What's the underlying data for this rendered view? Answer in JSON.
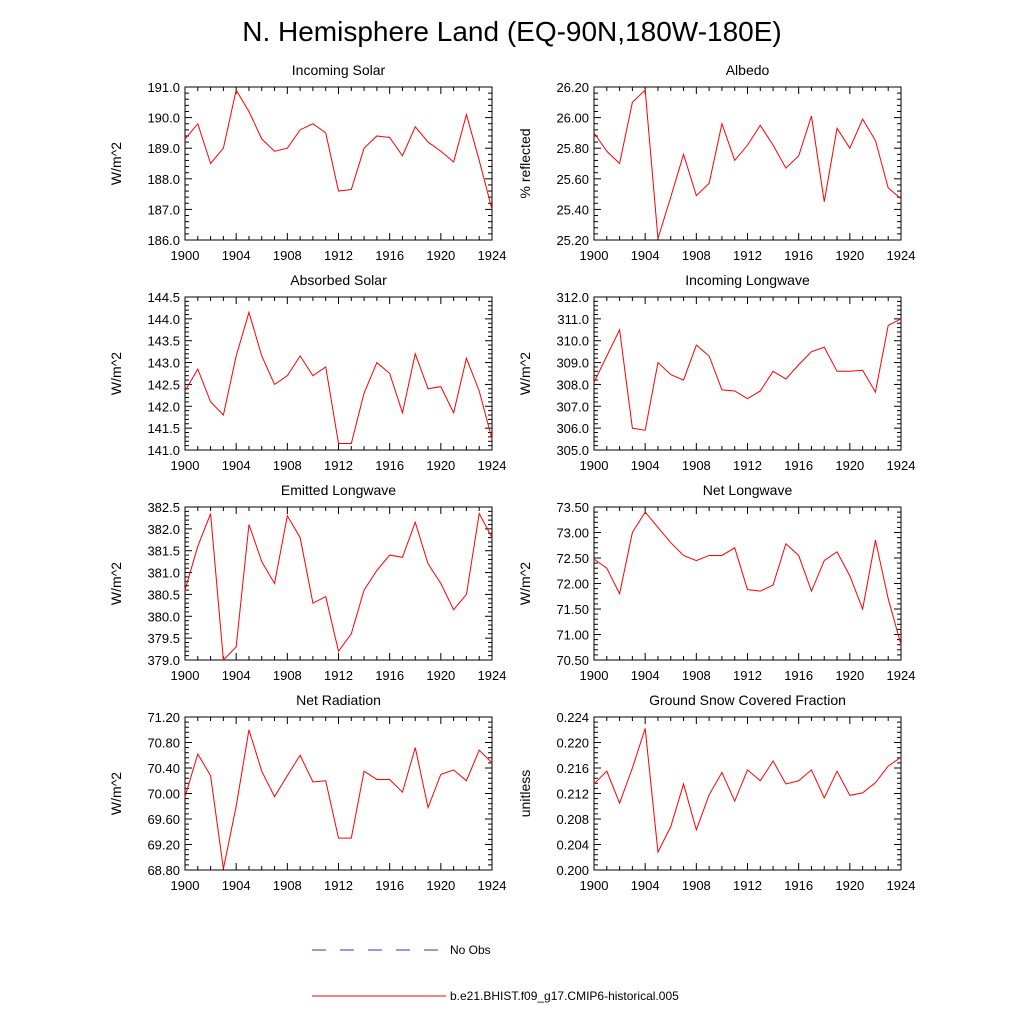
{
  "figure_title": "N. Hemisphere Land (EQ-90N,180W-180E)",
  "colors": {
    "model_line": "#ff0000",
    "obs_line": "#3333cc"
  },
  "legend": {
    "obs_label": "No Obs",
    "model_label": "b.e21.BHIST.f09_g17.CMIP6-historical.005"
  },
  "chart_data": [
    {
      "type": "line",
      "title": "Incoming Solar",
      "ylabel": "W/m^2",
      "xlabel": "",
      "xlim": [
        1900,
        1924
      ],
      "ylim": [
        186.0,
        191.0
      ],
      "xticks": [
        1900,
        1904,
        1908,
        1912,
        1916,
        1920,
        1924
      ],
      "yticks": [
        "186.0",
        "187.0",
        "188.0",
        "189.0",
        "190.0",
        "191.0"
      ],
      "series": [
        {
          "name": "b.e21.BHIST.f09_g17.CMIP6-historical.005",
          "x": [
            1900,
            1901,
            1902,
            1903,
            1904,
            1905,
            1906,
            1907,
            1908,
            1909,
            1910,
            1911,
            1912,
            1913,
            1914,
            1915,
            1916,
            1917,
            1918,
            1919,
            1920,
            1921,
            1922,
            1923,
            1924
          ],
          "values": [
            189.3,
            189.8,
            188.5,
            189.0,
            190.9,
            190.2,
            189.3,
            188.9,
            189.0,
            189.6,
            189.8,
            189.5,
            187.6,
            187.65,
            189.0,
            189.4,
            189.35,
            188.75,
            189.7,
            189.2,
            188.9,
            188.55,
            190.1,
            188.6,
            187.0
          ]
        }
      ]
    },
    {
      "type": "line",
      "title": "Albedo",
      "ylabel": "% reflected",
      "xlabel": "",
      "xlim": [
        1900,
        1924
      ],
      "ylim": [
        25.2,
        26.2
      ],
      "xticks": [
        1900,
        1904,
        1908,
        1912,
        1916,
        1920,
        1924
      ],
      "yticks": [
        "25.20",
        "25.40",
        "25.60",
        "25.80",
        "26.00",
        "26.20"
      ],
      "series": [
        {
          "name": "b.e21.BHIST.f09_g17.CMIP6-historical.005",
          "x": [
            1900,
            1901,
            1902,
            1903,
            1904,
            1905,
            1906,
            1907,
            1908,
            1909,
            1910,
            1911,
            1912,
            1913,
            1914,
            1915,
            1916,
            1917,
            1918,
            1919,
            1920,
            1921,
            1922,
            1923,
            1924
          ],
          "values": [
            25.9,
            25.78,
            25.7,
            26.1,
            26.18,
            25.21,
            25.48,
            25.76,
            25.49,
            25.57,
            25.96,
            25.72,
            25.82,
            25.95,
            25.82,
            25.67,
            25.75,
            26.01,
            25.45,
            25.93,
            25.8,
            25.99,
            25.85,
            25.54,
            25.47
          ]
        }
      ]
    },
    {
      "type": "line",
      "title": "Absorbed Solar",
      "ylabel": "W/m^2",
      "xlabel": "",
      "xlim": [
        1900,
        1924
      ],
      "ylim": [
        141.0,
        144.5
      ],
      "xticks": [
        1900,
        1904,
        1908,
        1912,
        1916,
        1920,
        1924
      ],
      "yticks": [
        "141.0",
        "141.5",
        "142.0",
        "142.5",
        "143.0",
        "143.5",
        "144.0",
        "144.5"
      ],
      "series": [
        {
          "name": "b.e21.BHIST.f09_g17.CMIP6-historical.005",
          "x": [
            1900,
            1901,
            1902,
            1903,
            1904,
            1905,
            1906,
            1907,
            1908,
            1909,
            1910,
            1911,
            1912,
            1913,
            1914,
            1915,
            1916,
            1917,
            1918,
            1919,
            1920,
            1921,
            1922,
            1923,
            1924
          ],
          "values": [
            142.35,
            142.85,
            142.1,
            141.8,
            143.15,
            144.15,
            143.15,
            142.5,
            142.7,
            143.15,
            142.7,
            142.9,
            141.15,
            141.15,
            142.3,
            143.0,
            142.75,
            141.85,
            143.2,
            142.4,
            142.45,
            141.85,
            143.1,
            142.35,
            141.25
          ]
        }
      ]
    },
    {
      "type": "line",
      "title": "Incoming Longwave",
      "ylabel": "W/m^2",
      "xlabel": "",
      "xlim": [
        1900,
        1924
      ],
      "ylim": [
        305.0,
        312.0
      ],
      "xticks": [
        1900,
        1904,
        1908,
        1912,
        1916,
        1920,
        1924
      ],
      "yticks": [
        "305.0",
        "306.0",
        "307.0",
        "308.0",
        "309.0",
        "310.0",
        "311.0",
        "312.0"
      ],
      "series": [
        {
          "name": "b.e21.BHIST.f09_g17.CMIP6-historical.005",
          "x": [
            1900,
            1901,
            1902,
            1903,
            1904,
            1905,
            1906,
            1907,
            1908,
            1909,
            1910,
            1911,
            1912,
            1913,
            1914,
            1915,
            1916,
            1917,
            1918,
            1919,
            1920,
            1921,
            1922,
            1923,
            1924
          ],
          "values": [
            308.1,
            309.3,
            310.5,
            306.0,
            305.9,
            309.0,
            308.45,
            308.2,
            309.8,
            309.3,
            307.75,
            307.7,
            307.35,
            307.7,
            308.6,
            308.25,
            308.9,
            309.5,
            309.7,
            308.6,
            308.6,
            308.65,
            307.65,
            310.7,
            311.0
          ]
        }
      ]
    },
    {
      "type": "line",
      "title": "Emitted Longwave",
      "ylabel": "W/m^2",
      "xlabel": "",
      "xlim": [
        1900,
        1924
      ],
      "ylim": [
        379.0,
        382.5
      ],
      "xticks": [
        1900,
        1904,
        1908,
        1912,
        1916,
        1920,
        1924
      ],
      "yticks": [
        "379.0",
        "379.5",
        "380.0",
        "380.5",
        "381.0",
        "381.5",
        "382.0",
        "382.5"
      ],
      "series": [
        {
          "name": "b.e21.BHIST.f09_g17.CMIP6-historical.005",
          "x": [
            1900,
            1901,
            1902,
            1903,
            1904,
            1905,
            1906,
            1907,
            1908,
            1909,
            1910,
            1911,
            1912,
            1913,
            1914,
            1915,
            1916,
            1917,
            1918,
            1919,
            1920,
            1921,
            1922,
            1923,
            1924
          ],
          "values": [
            380.6,
            381.6,
            382.35,
            379.0,
            379.3,
            382.1,
            381.25,
            380.75,
            382.3,
            381.8,
            380.3,
            380.45,
            379.2,
            379.6,
            380.6,
            381.05,
            381.4,
            381.35,
            382.15,
            381.2,
            380.75,
            380.15,
            380.5,
            382.35,
            381.8
          ]
        }
      ]
    },
    {
      "type": "line",
      "title": "Net Longwave",
      "ylabel": "W/m^2",
      "xlabel": "",
      "xlim": [
        1900,
        1924
      ],
      "ylim": [
        70.5,
        73.5
      ],
      "xticks": [
        1900,
        1904,
        1908,
        1912,
        1916,
        1920,
        1924
      ],
      "yticks": [
        "70.50",
        "71.00",
        "71.50",
        "72.00",
        "72.50",
        "73.00",
        "73.50"
      ],
      "series": [
        {
          "name": "b.e21.BHIST.f09_g17.CMIP6-historical.005",
          "x": [
            1900,
            1901,
            1902,
            1903,
            1904,
            1905,
            1906,
            1907,
            1908,
            1909,
            1910,
            1911,
            1912,
            1913,
            1914,
            1915,
            1916,
            1917,
            1918,
            1919,
            1920,
            1921,
            1922,
            1923,
            1924
          ],
          "values": [
            72.48,
            72.3,
            71.8,
            73.0,
            73.4,
            73.1,
            72.8,
            72.55,
            72.45,
            72.55,
            72.55,
            72.7,
            71.88,
            71.85,
            71.97,
            72.78,
            72.55,
            71.85,
            72.45,
            72.62,
            72.15,
            71.5,
            72.85,
            71.7,
            70.8
          ]
        }
      ]
    },
    {
      "type": "line",
      "title": "Net Radiation",
      "ylabel": "W/m^2",
      "xlabel": "",
      "xlim": [
        1900,
        1924
      ],
      "ylim": [
        68.8,
        71.2
      ],
      "xticks": [
        1900,
        1904,
        1908,
        1912,
        1916,
        1920,
        1924
      ],
      "yticks": [
        "68.80",
        "69.20",
        "69.60",
        "70.00",
        "70.40",
        "70.80",
        "71.20"
      ],
      "series": [
        {
          "name": "b.e21.BHIST.f09_g17.CMIP6-historical.005",
          "x": [
            1900,
            1901,
            1902,
            1903,
            1904,
            1905,
            1906,
            1907,
            1908,
            1909,
            1910,
            1911,
            1912,
            1913,
            1914,
            1915,
            1916,
            1917,
            1918,
            1919,
            1920,
            1921,
            1922,
            1923,
            1924
          ],
          "values": [
            69.95,
            70.62,
            70.28,
            68.82,
            69.8,
            71.0,
            70.35,
            69.95,
            70.28,
            70.6,
            70.18,
            70.2,
            69.3,
            69.3,
            70.35,
            70.22,
            70.22,
            70.02,
            70.72,
            69.78,
            70.3,
            70.37,
            70.2,
            70.68,
            70.48
          ]
        }
      ]
    },
    {
      "type": "line",
      "title": "Ground Snow Covered Fraction",
      "ylabel": "unitless",
      "xlabel": "",
      "xlim": [
        1900,
        1924
      ],
      "ylim": [
        0.2,
        0.224
      ],
      "xticks": [
        1900,
        1904,
        1908,
        1912,
        1916,
        1920,
        1924
      ],
      "yticks": [
        "0.200",
        "0.204",
        "0.208",
        "0.212",
        "0.216",
        "0.220",
        "0.224"
      ],
      "series": [
        {
          "name": "b.e21.BHIST.f09_g17.CMIP6-historical.005",
          "x": [
            1900,
            1901,
            1902,
            1903,
            1904,
            1905,
            1906,
            1907,
            1908,
            1909,
            1910,
            1911,
            1912,
            1913,
            1914,
            1915,
            1916,
            1917,
            1918,
            1919,
            1920,
            1921,
            1922,
            1923,
            1924
          ],
          "values": [
            0.2135,
            0.2155,
            0.2105,
            0.216,
            0.2222,
            0.2028,
            0.2068,
            0.2135,
            0.2063,
            0.2118,
            0.2153,
            0.2108,
            0.2157,
            0.214,
            0.2171,
            0.2135,
            0.214,
            0.2157,
            0.2113,
            0.2155,
            0.2117,
            0.2121,
            0.2137,
            0.2163,
            0.2177
          ]
        }
      ]
    }
  ]
}
